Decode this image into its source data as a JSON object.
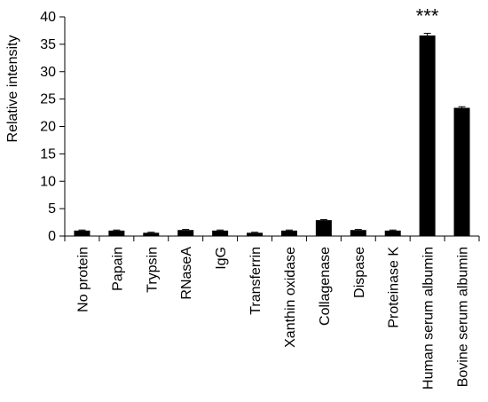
{
  "chart_data": {
    "type": "bar",
    "title": "",
    "xlabel": "",
    "ylabel": "Relative intensity",
    "ylim": [
      0,
      40
    ],
    "yticks": [
      0,
      5,
      10,
      15,
      20,
      25,
      30,
      35,
      40
    ],
    "grid": false,
    "legend": "none",
    "categories": [
      "No protein",
      "Papain",
      "Trypsin",
      "RNaseA",
      "IgG",
      "Transferrin",
      "Xanthin oxidase",
      "Collagenase",
      "Dispase",
      "Proteinase K",
      "Human serum albumin",
      "Bovine serum albumin"
    ],
    "values": [
      1.0,
      1.0,
      0.6,
      1.1,
      1.0,
      0.6,
      1.0,
      2.9,
      1.1,
      1.0,
      36.6,
      23.4
    ],
    "error": [
      0.1,
      0.1,
      0.1,
      0.1,
      0.1,
      0.1,
      0.1,
      0.1,
      0.1,
      0.1,
      0.4,
      0.2
    ],
    "annotations": [
      {
        "category": "Human serum albumin",
        "text": "***"
      }
    ],
    "bar_color": "#000000"
  }
}
